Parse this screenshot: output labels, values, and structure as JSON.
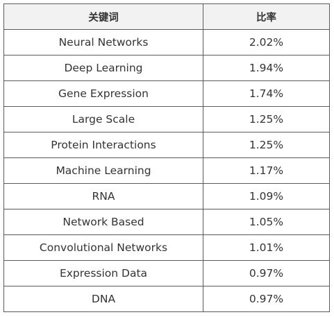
{
  "table": {
    "headers": [
      "关键词",
      "比率"
    ],
    "rows": [
      {
        "keyword": "Neural Networks",
        "ratio": "2.02%"
      },
      {
        "keyword": "Deep Learning",
        "ratio": "1.94%"
      },
      {
        "keyword": "Gene Expression",
        "ratio": "1.74%"
      },
      {
        "keyword": "Large Scale",
        "ratio": "1.25%"
      },
      {
        "keyword": "Protein Interactions",
        "ratio": "1.25%"
      },
      {
        "keyword": "Machine Learning",
        "ratio": "1.17%"
      },
      {
        "keyword": "RNA",
        "ratio": "1.09%"
      },
      {
        "keyword": "Network Based",
        "ratio": "1.05%"
      },
      {
        "keyword": "Convolutional Networks",
        "ratio": "1.01%"
      },
      {
        "keyword": "Expression Data",
        "ratio": "0.97%"
      },
      {
        "keyword": "DNA",
        "ratio": "0.97%"
      }
    ]
  }
}
